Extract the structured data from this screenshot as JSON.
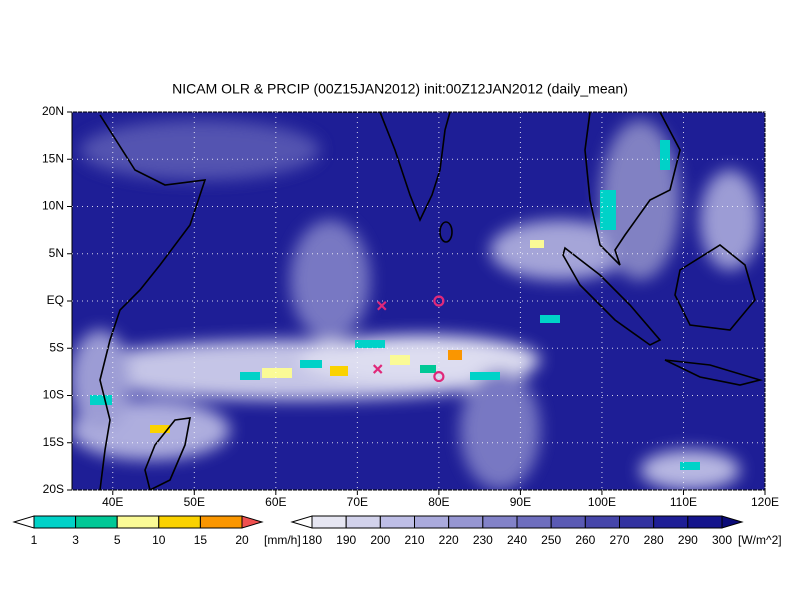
{
  "map": {
    "title": "NICAM OLR & PRCIP (00Z15JAN2012) init:00Z12JAN2012 (daily_mean)",
    "lonlim": [
      35,
      120
    ],
    "latlim": [
      -20,
      20
    ],
    "lonticks": [
      {
        "value": 40,
        "label": "40E"
      },
      {
        "value": 50,
        "label": "50E"
      },
      {
        "value": 60,
        "label": "60E"
      },
      {
        "value": 70,
        "label": "70E"
      },
      {
        "value": 80,
        "label": "80E"
      },
      {
        "value": 90,
        "label": "90E"
      },
      {
        "value": 100,
        "label": "100E"
      },
      {
        "value": 110,
        "label": "110E"
      },
      {
        "value": 120,
        "label": "120E"
      }
    ],
    "latticks": [
      {
        "value": 20,
        "label": "20N"
      },
      {
        "value": 15,
        "label": "15N"
      },
      {
        "value": 10,
        "label": "10N"
      },
      {
        "value": 5,
        "label": "5N"
      },
      {
        "value": 0,
        "label": "EQ"
      },
      {
        "value": -5,
        "label": "5S"
      },
      {
        "value": -10,
        "label": "10S"
      },
      {
        "value": -15,
        "label": "15S"
      },
      {
        "value": -20,
        "label": "20S"
      }
    ],
    "grid": true,
    "markers": [
      {
        "shape": "x",
        "lon": 73,
        "lat": -0.5,
        "color": "#e0287a"
      },
      {
        "shape": "o",
        "lon": 80,
        "lat": 0,
        "color": "#e0287a"
      },
      {
        "shape": "x",
        "lon": 72.5,
        "lat": -7.2,
        "color": "#e0287a"
      },
      {
        "shape": "o",
        "lon": 80,
        "lat": -8,
        "color": "#e0287a"
      }
    ],
    "colorbars": [
      {
        "unit": "[mm/h]",
        "levels": [
          1,
          3,
          5,
          10,
          15,
          20
        ],
        "colors": [
          "#ffffff",
          "#00d2c8",
          "#00c896",
          "#fafa96",
          "#fad200",
          "#fa9600",
          "#f05050"
        ]
      },
      {
        "unit": "[W/m^2]",
        "levels": [
          180,
          190,
          200,
          210,
          220,
          230,
          240,
          250,
          260,
          270,
          280,
          290,
          300
        ],
        "colors": [
          "#ffffff",
          "#e6e6f2",
          "#d2d2eb",
          "#bebee6",
          "#aaaadc",
          "#9696d2",
          "#8282c8",
          "#6e6ebe",
          "#5a5ab4",
          "#4646aa",
          "#3232a0",
          "#1e1e96",
          "#14148c",
          "#0a0a78"
        ]
      }
    ]
  }
}
